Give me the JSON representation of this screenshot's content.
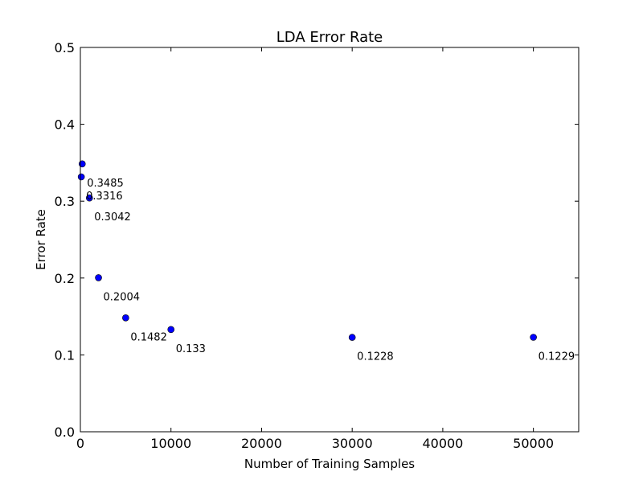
{
  "chart_data": {
    "type": "scatter",
    "title": "LDA Error Rate",
    "xlabel": "Number of Training Samples",
    "ylabel": "Error Rate",
    "xlim": [
      0,
      55000
    ],
    "ylim": [
      0,
      0.5
    ],
    "xticks": [
      0,
      10000,
      20000,
      30000,
      40000,
      50000
    ],
    "yticks": [
      0.0,
      0.1,
      0.2,
      0.3,
      0.4,
      0.5
    ],
    "xtick_labels": [
      "0",
      "10000",
      "20000",
      "30000",
      "40000",
      "50000"
    ],
    "ytick_labels": [
      "0.0",
      "0.1",
      "0.2",
      "0.3",
      "0.4",
      "0.5"
    ],
    "grid": false,
    "marker_color": "#0000ff",
    "points": [
      {
        "x": 100,
        "y": 0.3316,
        "label": "0.3316"
      },
      {
        "x": 200,
        "y": 0.3485,
        "label": "0.3485"
      },
      {
        "x": 1000,
        "y": 0.3042,
        "label": "0.3042"
      },
      {
        "x": 2000,
        "y": 0.2004,
        "label": "0.2004"
      },
      {
        "x": 5000,
        "y": 0.1482,
        "label": "0.1482"
      },
      {
        "x": 10000,
        "y": 0.133,
        "label": "0.133"
      },
      {
        "x": 30000,
        "y": 0.1228,
        "label": "0.1228"
      },
      {
        "x": 50000,
        "y": 0.1229,
        "label": "0.1229"
      }
    ]
  }
}
